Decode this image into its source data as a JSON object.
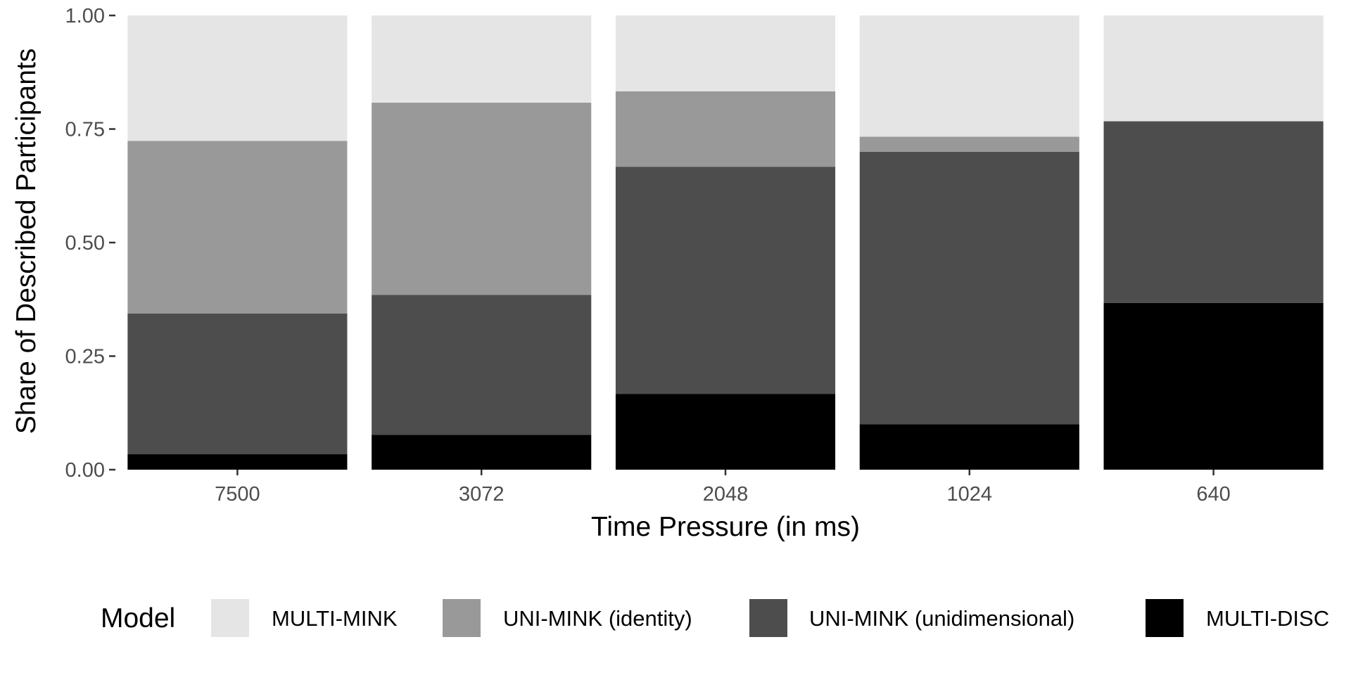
{
  "chart_data": {
    "type": "bar",
    "stacked": true,
    "xlabel": "Time Pressure (in ms)",
    "ylabel": "Share of Described Participants",
    "ylim": [
      0,
      1
    ],
    "y_ticks": [
      "0.00",
      "0.25",
      "0.50",
      "0.75",
      "1.00"
    ],
    "categories": [
      "7500",
      "3072",
      "2048",
      "1024",
      "640"
    ],
    "legend": {
      "title": "Model",
      "position": "bottom"
    },
    "series": [
      {
        "name": "MULTI-DISC",
        "color": "#000000",
        "values": [
          0.034,
          0.077,
          0.167,
          0.1,
          0.367
        ]
      },
      {
        "name": "UNI-MINK (unidimensional)",
        "color": "#4d4d4d",
        "values": [
          0.31,
          0.308,
          0.5,
          0.6,
          0.4
        ]
      },
      {
        "name": "UNI-MINK (identity)",
        "color": "#999999",
        "values": [
          0.38,
          0.423,
          0.166,
          0.033,
          0.0
        ]
      },
      {
        "name": "MULTI-MINK",
        "color": "#e5e5e5",
        "values": [
          0.276,
          0.192,
          0.167,
          0.267,
          0.233
        ]
      }
    ],
    "legend_order": [
      "MULTI-MINK",
      "UNI-MINK (identity)",
      "UNI-MINK (unidimensional)",
      "MULTI-DISC"
    ],
    "grid": false
  }
}
